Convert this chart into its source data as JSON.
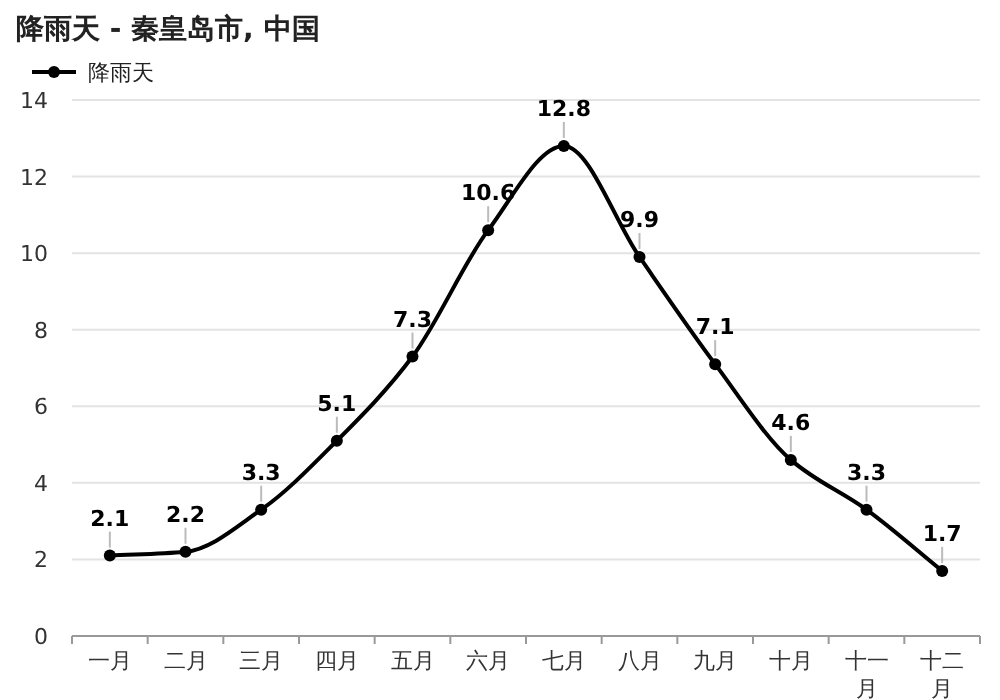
{
  "chart_data": {
    "type": "line",
    "title": "降雨天 - 秦皇岛市, 中国",
    "categories": [
      "一月",
      "二月",
      "三月",
      "四月",
      "五月",
      "六月",
      "七月",
      "八月",
      "九月",
      "十月",
      "十一月",
      "十二月"
    ],
    "series": [
      {
        "name": "降雨天",
        "color": "#000000",
        "values": [
          2.1,
          2.2,
          3.3,
          5.1,
          7.3,
          10.6,
          12.8,
          9.9,
          7.1,
          4.6,
          3.3,
          1.7
        ]
      }
    ],
    "ylim": [
      0,
      14
    ],
    "yticks": [
      0,
      2,
      4,
      6,
      8,
      10,
      12,
      14
    ],
    "grid": "y",
    "legend": "top left",
    "marker": "circle",
    "line_style": "solid",
    "data_labels": true
  }
}
